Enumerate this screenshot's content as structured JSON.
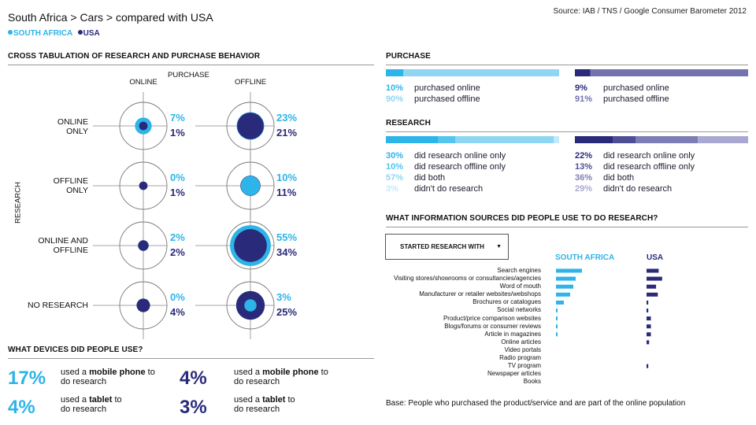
{
  "header": {
    "title": "South Africa > Cars > compared with USA",
    "source": "Source: IAB / TNS / Google Consumer Barometer 2012",
    "legend": [
      {
        "label": "SOUTH AFRICA",
        "color": "#2db4e8"
      },
      {
        "label": "USA",
        "color": "#2a2a7a"
      }
    ]
  },
  "colors": {
    "south_africa": "#2db4e8",
    "usa": "#2a2a7a",
    "sa_light": "#8fd6f3",
    "us_mid": "#7373b0",
    "us_light": "#b4b4d6"
  },
  "crosstab": {
    "section_title": "CROSS TABULATION OF RESEARCH AND PURCHASE BEHAVIOR",
    "purchase_label": "PURCHASE",
    "research_label": "RESEARCH",
    "columns": [
      "ONLINE",
      "OFFLINE"
    ],
    "rows": [
      {
        "label_line1": "ONLINE",
        "label_line2": "ONLY",
        "online_sa": "7%",
        "online_us": "1%",
        "offline_sa": "23%",
        "offline_us": "21%"
      },
      {
        "label_line1": "OFFLINE",
        "label_line2": "ONLY",
        "online_sa": "0%",
        "online_us": "1%",
        "offline_sa": "10%",
        "offline_us": "11%"
      },
      {
        "label_line1": "ONLINE AND",
        "label_line2": "OFFLINE",
        "online_sa": "2%",
        "online_us": "2%",
        "offline_sa": "55%",
        "offline_us": "34%"
      },
      {
        "label_line1": "NO RESEARCH",
        "label_line2": "",
        "online_sa": "0%",
        "online_us": "4%",
        "offline_sa": "3%",
        "offline_us": "25%"
      }
    ]
  },
  "devices": {
    "section_title": "WHAT DEVICES DID PEOPLE USE?",
    "sa": [
      {
        "value": "17%",
        "pre": "used a ",
        "device": "mobile phone",
        "post": " to",
        "line2": "do research"
      },
      {
        "value": "4%",
        "pre": "used a ",
        "device": "tablet",
        "post": " to",
        "line2": "do research"
      }
    ],
    "us": [
      {
        "value": "4%",
        "pre": "used a ",
        "device": "mobile phone",
        "post": " to",
        "line2": "do research"
      },
      {
        "value": "3%",
        "pre": "used a ",
        "device": "tablet",
        "post": " to",
        "line2": "do research"
      }
    ]
  },
  "purchase": {
    "section_title": "PURCHASE",
    "sa": [
      {
        "value": "10%",
        "label": "purchased online"
      },
      {
        "value": "90%",
        "label": "purchased offline"
      }
    ],
    "us": [
      {
        "value": "9%",
        "label": "purchased online"
      },
      {
        "value": "91%",
        "label": "purchased offline"
      }
    ]
  },
  "research": {
    "section_title": "RESEARCH",
    "sa": [
      {
        "value": "30%",
        "label": "did research online only"
      },
      {
        "value": "10%",
        "label": "did research offline only"
      },
      {
        "value": "57%",
        "label": "did both"
      },
      {
        "value": "3%",
        "label": "didn't do research"
      }
    ],
    "us": [
      {
        "value": "22%",
        "label": "did research online only"
      },
      {
        "value": "13%",
        "label": "did research offline only"
      },
      {
        "value": "36%",
        "label": "did both"
      },
      {
        "value": "29%",
        "label": "didn't do research"
      }
    ]
  },
  "sources": {
    "section_title": "WHAT INFORMATION SOURCES DID PEOPLE USE TO DO RESEARCH?",
    "dropdown_label": "STARTED RESEARCH WITH",
    "col_sa": "SOUTH AFRICA",
    "col_us": "USA",
    "base": "Base: People who purchased the product/service and are part of the online population"
  },
  "chart_data": [
    {
      "type": "bubble-matrix",
      "title": "CROSS TABULATION OF RESEARCH AND PURCHASE BEHAVIOR",
      "x_categories": [
        "ONLINE",
        "OFFLINE"
      ],
      "y_categories": [
        "ONLINE ONLY",
        "OFFLINE ONLY",
        "ONLINE AND OFFLINE",
        "NO RESEARCH"
      ],
      "series": [
        {
          "name": "SOUTH AFRICA",
          "values": [
            [
              7,
              23
            ],
            [
              0,
              10
            ],
            [
              2,
              55
            ],
            [
              0,
              3
            ]
          ]
        },
        {
          "name": "USA",
          "values": [
            [
              1,
              21
            ],
            [
              1,
              11
            ],
            [
              2,
              34
            ],
            [
              4,
              25
            ]
          ]
        }
      ]
    },
    {
      "type": "bar",
      "stacked": true,
      "title": "PURCHASE",
      "categories": [
        "purchased online",
        "purchased offline"
      ],
      "series": [
        {
          "name": "SOUTH AFRICA",
          "values": [
            10,
            90
          ]
        },
        {
          "name": "USA",
          "values": [
            9,
            91
          ]
        }
      ]
    },
    {
      "type": "bar",
      "stacked": true,
      "title": "RESEARCH",
      "categories": [
        "did research online only",
        "did research offline only",
        "did both",
        "didn't do research"
      ],
      "series": [
        {
          "name": "SOUTH AFRICA",
          "values": [
            30,
            10,
            57,
            3
          ]
        },
        {
          "name": "USA",
          "values": [
            22,
            13,
            36,
            29
          ]
        }
      ]
    },
    {
      "type": "bar",
      "orientation": "horizontal",
      "title": "WHAT INFORMATION SOURCES DID PEOPLE USE TO DO RESEARCH?",
      "categories": [
        "Search engines",
        "Visiting stores/showrooms or consultancies/agencies",
        "Word of mouth",
        "Manufacturer or retailer websites/webshops",
        "Brochures or catalogues",
        "Social networks",
        "Product/price comparison websites",
        "Blogs/forums or consumer reviews",
        "Article in magazines",
        "Online articles",
        "Video portals",
        "Radio program",
        "TV program",
        "Newspaper articles",
        "Books"
      ],
      "series": [
        {
          "name": "SOUTH AFRICA",
          "values": [
            33,
            25,
            22,
            18,
            10,
            2,
            2,
            2,
            2,
            0,
            0,
            0,
            0,
            0,
            0
          ]
        },
        {
          "name": "USA",
          "values": [
            14,
            18,
            11,
            13,
            2,
            2,
            5,
            5,
            5,
            3,
            0,
            0,
            2,
            0,
            0
          ]
        }
      ],
      "xlabel": "",
      "ylabel": ""
    }
  ]
}
